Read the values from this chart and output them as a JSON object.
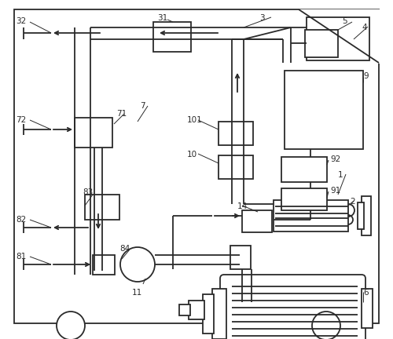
{
  "lc": "#2a2a2a",
  "lw": 1.3,
  "bg": "#ffffff"
}
